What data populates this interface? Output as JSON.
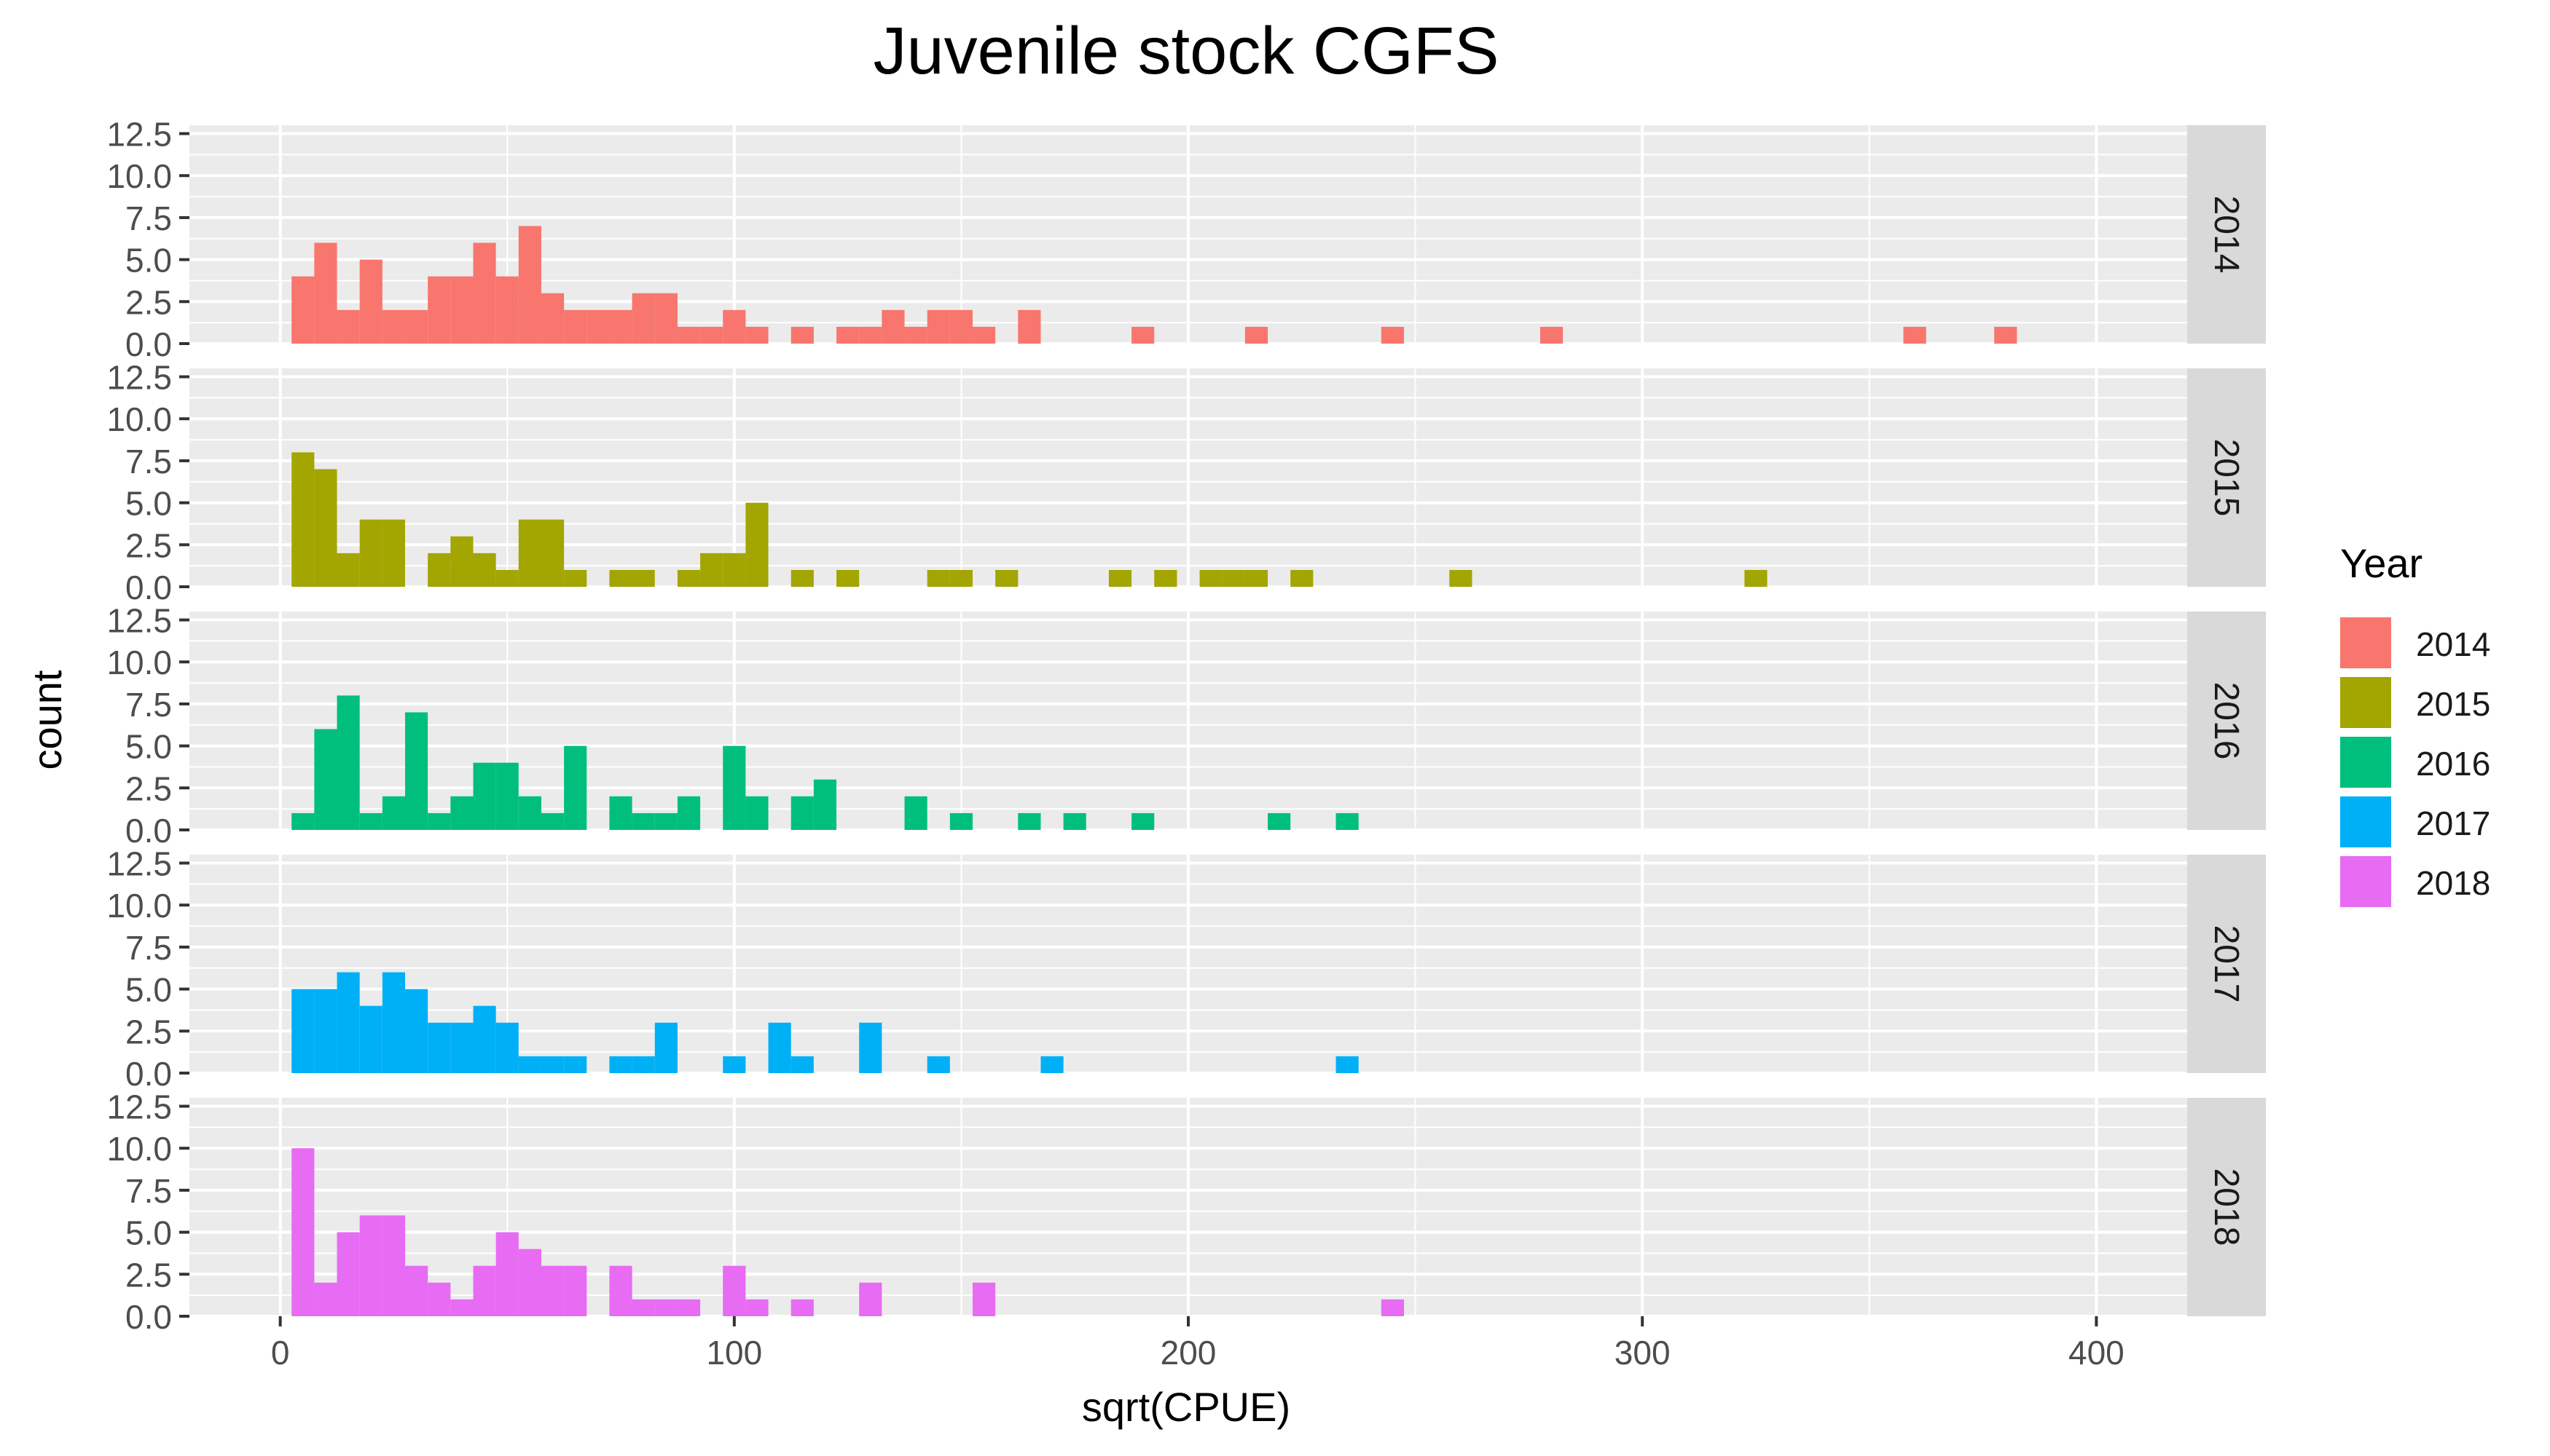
{
  "chart_data": {
    "type": "bar",
    "chart_kind": "faceted histogram",
    "title": "Juvenile stock CGFS",
    "xlabel": "sqrt(CPUE)",
    "ylabel": "count",
    "xlim": [
      -20,
      420
    ],
    "ylim": [
      0,
      13
    ],
    "x_ticks": [
      "0",
      "100",
      "200",
      "300",
      "400"
    ],
    "y_ticks": [
      "0.0",
      "2.5",
      "5.0",
      "7.5",
      "10.0",
      "12.5"
    ],
    "bin_width": 5,
    "grid": true,
    "legend": {
      "title": "Year",
      "position": "right",
      "entries": [
        "2014",
        "2015",
        "2016",
        "2017",
        "2018"
      ]
    },
    "series": [
      {
        "name": "2014",
        "color": "#F8766D",
        "bins": [
          {
            "x": 5,
            "count": 4
          },
          {
            "x": 10,
            "count": 6
          },
          {
            "x": 15,
            "count": 2
          },
          {
            "x": 20,
            "count": 5
          },
          {
            "x": 25,
            "count": 2
          },
          {
            "x": 30,
            "count": 2
          },
          {
            "x": 35,
            "count": 4
          },
          {
            "x": 40,
            "count": 4
          },
          {
            "x": 45,
            "count": 6
          },
          {
            "x": 50,
            "count": 4
          },
          {
            "x": 55,
            "count": 7
          },
          {
            "x": 60,
            "count": 3
          },
          {
            "x": 65,
            "count": 2
          },
          {
            "x": 70,
            "count": 2
          },
          {
            "x": 75,
            "count": 2
          },
          {
            "x": 80,
            "count": 3
          },
          {
            "x": 85,
            "count": 3
          },
          {
            "x": 90,
            "count": 1
          },
          {
            "x": 95,
            "count": 1
          },
          {
            "x": 100,
            "count": 2
          },
          {
            "x": 105,
            "count": 1
          },
          {
            "x": 115,
            "count": 1
          },
          {
            "x": 125,
            "count": 1
          },
          {
            "x": 130,
            "count": 1
          },
          {
            "x": 135,
            "count": 2
          },
          {
            "x": 140,
            "count": 1
          },
          {
            "x": 145,
            "count": 2
          },
          {
            "x": 150,
            "count": 2
          },
          {
            "x": 155,
            "count": 1
          },
          {
            "x": 165,
            "count": 2
          },
          {
            "x": 190,
            "count": 1
          },
          {
            "x": 215,
            "count": 1
          },
          {
            "x": 245,
            "count": 1
          },
          {
            "x": 280,
            "count": 1
          },
          {
            "x": 360,
            "count": 1
          },
          {
            "x": 380,
            "count": 1
          }
        ]
      },
      {
        "name": "2015",
        "color": "#A3A500",
        "bins": [
          {
            "x": 5,
            "count": 8
          },
          {
            "x": 10,
            "count": 7
          },
          {
            "x": 15,
            "count": 2
          },
          {
            "x": 20,
            "count": 4
          },
          {
            "x": 25,
            "count": 4
          },
          {
            "x": 35,
            "count": 2
          },
          {
            "x": 40,
            "count": 3
          },
          {
            "x": 45,
            "count": 2
          },
          {
            "x": 50,
            "count": 1
          },
          {
            "x": 55,
            "count": 4
          },
          {
            "x": 60,
            "count": 4
          },
          {
            "x": 65,
            "count": 1
          },
          {
            "x": 75,
            "count": 1
          },
          {
            "x": 80,
            "count": 1
          },
          {
            "x": 90,
            "count": 1
          },
          {
            "x": 95,
            "count": 2
          },
          {
            "x": 100,
            "count": 2
          },
          {
            "x": 105,
            "count": 5
          },
          {
            "x": 115,
            "count": 1
          },
          {
            "x": 125,
            "count": 1
          },
          {
            "x": 145,
            "count": 1
          },
          {
            "x": 150,
            "count": 1
          },
          {
            "x": 160,
            "count": 1
          },
          {
            "x": 185,
            "count": 1
          },
          {
            "x": 195,
            "count": 1
          },
          {
            "x": 205,
            "count": 1
          },
          {
            "x": 210,
            "count": 1
          },
          {
            "x": 215,
            "count": 1
          },
          {
            "x": 225,
            "count": 1
          },
          {
            "x": 260,
            "count": 1
          },
          {
            "x": 325,
            "count": 1
          }
        ]
      },
      {
        "name": "2016",
        "color": "#00BF7D",
        "bins": [
          {
            "x": 5,
            "count": 1
          },
          {
            "x": 10,
            "count": 6
          },
          {
            "x": 15,
            "count": 8
          },
          {
            "x": 20,
            "count": 1
          },
          {
            "x": 25,
            "count": 2
          },
          {
            "x": 30,
            "count": 7
          },
          {
            "x": 35,
            "count": 1
          },
          {
            "x": 40,
            "count": 2
          },
          {
            "x": 45,
            "count": 4
          },
          {
            "x": 50,
            "count": 4
          },
          {
            "x": 55,
            "count": 2
          },
          {
            "x": 60,
            "count": 1
          },
          {
            "x": 65,
            "count": 5
          },
          {
            "x": 75,
            "count": 2
          },
          {
            "x": 80,
            "count": 1
          },
          {
            "x": 85,
            "count": 1
          },
          {
            "x": 90,
            "count": 2
          },
          {
            "x": 100,
            "count": 5
          },
          {
            "x": 105,
            "count": 2
          },
          {
            "x": 115,
            "count": 2
          },
          {
            "x": 120,
            "count": 3
          },
          {
            "x": 140,
            "count": 2
          },
          {
            "x": 150,
            "count": 1
          },
          {
            "x": 165,
            "count": 1
          },
          {
            "x": 175,
            "count": 1
          },
          {
            "x": 190,
            "count": 1
          },
          {
            "x": 220,
            "count": 1
          },
          {
            "x": 235,
            "count": 1
          }
        ]
      },
      {
        "name": "2017",
        "color": "#00B0F6",
        "bins": [
          {
            "x": 5,
            "count": 5
          },
          {
            "x": 10,
            "count": 5
          },
          {
            "x": 15,
            "count": 6
          },
          {
            "x": 20,
            "count": 4
          },
          {
            "x": 25,
            "count": 6
          },
          {
            "x": 30,
            "count": 5
          },
          {
            "x": 35,
            "count": 3
          },
          {
            "x": 40,
            "count": 3
          },
          {
            "x": 45,
            "count": 4
          },
          {
            "x": 50,
            "count": 3
          },
          {
            "x": 55,
            "count": 1
          },
          {
            "x": 60,
            "count": 1
          },
          {
            "x": 65,
            "count": 1
          },
          {
            "x": 75,
            "count": 1
          },
          {
            "x": 80,
            "count": 1
          },
          {
            "x": 85,
            "count": 3
          },
          {
            "x": 100,
            "count": 1
          },
          {
            "x": 110,
            "count": 3
          },
          {
            "x": 115,
            "count": 1
          },
          {
            "x": 130,
            "count": 3
          },
          {
            "x": 145,
            "count": 1
          },
          {
            "x": 170,
            "count": 1
          },
          {
            "x": 235,
            "count": 1
          }
        ]
      },
      {
        "name": "2018",
        "color": "#E76BF3",
        "bins": [
          {
            "x": 5,
            "count": 10
          },
          {
            "x": 10,
            "count": 2
          },
          {
            "x": 15,
            "count": 5
          },
          {
            "x": 20,
            "count": 6
          },
          {
            "x": 25,
            "count": 6
          },
          {
            "x": 30,
            "count": 3
          },
          {
            "x": 35,
            "count": 2
          },
          {
            "x": 40,
            "count": 1
          },
          {
            "x": 45,
            "count": 3
          },
          {
            "x": 50,
            "count": 5
          },
          {
            "x": 55,
            "count": 4
          },
          {
            "x": 60,
            "count": 3
          },
          {
            "x": 65,
            "count": 3
          },
          {
            "x": 75,
            "count": 3
          },
          {
            "x": 80,
            "count": 1
          },
          {
            "x": 85,
            "count": 1
          },
          {
            "x": 90,
            "count": 1
          },
          {
            "x": 100,
            "count": 3
          },
          {
            "x": 105,
            "count": 1
          },
          {
            "x": 115,
            "count": 1
          },
          {
            "x": 130,
            "count": 2
          },
          {
            "x": 155,
            "count": 2
          },
          {
            "x": 245,
            "count": 1
          }
        ]
      }
    ]
  }
}
